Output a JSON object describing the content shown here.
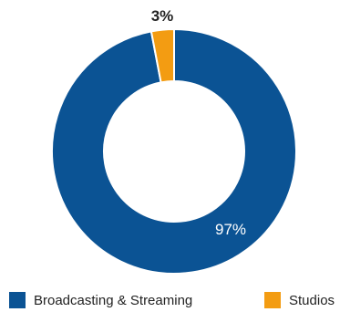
{
  "chart_data": {
    "type": "pie",
    "donut": true,
    "categories": [
      "Broadcasting & Streaming",
      "Studios"
    ],
    "values": [
      97,
      3
    ],
    "labels": [
      "97%",
      "3%"
    ],
    "colors": [
      "#0b5394",
      "#f39c12"
    ],
    "legend_position": "bottom",
    "title": ""
  },
  "legend": {
    "items": [
      {
        "label": "Broadcasting & Streaming",
        "color": "#0b5394"
      },
      {
        "label": "Studios",
        "color": "#f39c12"
      }
    ]
  }
}
